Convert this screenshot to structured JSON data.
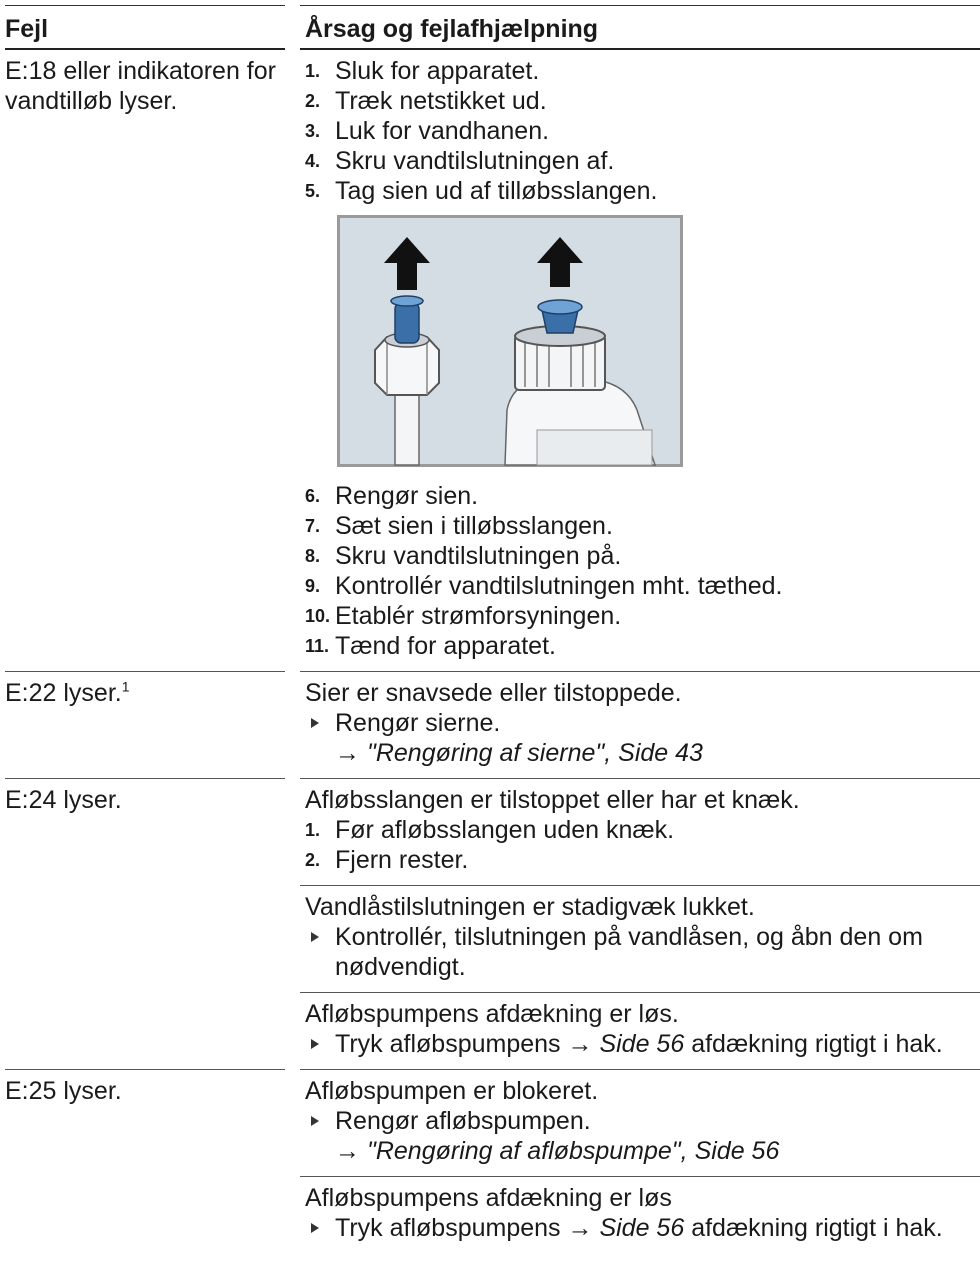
{
  "table": {
    "headers": [
      "Fejl",
      "Årsag og fejlafhjælpning"
    ],
    "rows": [
      {
        "fault": "E:18 eller indikatoren for vandtilløb lyser.",
        "groups": [
          {
            "steps": [
              {
                "num": "1.",
                "text": "Sluk for apparatet."
              },
              {
                "num": "2.",
                "text": "Træk netstikket ud."
              },
              {
                "num": "3.",
                "text": "Luk for vandhanen."
              },
              {
                "num": "4.",
                "text": "Skru vandtilslutningen af."
              },
              {
                "num": "5.",
                "text": "Tag sien ud af tilløbsslangen."
              },
              {
                "num": "6.",
                "text": "Rengør sien."
              },
              {
                "num": "7.",
                "text": "Sæt sien i tilløbsslangen."
              },
              {
                "num": "8.",
                "text": "Skru vandtilslutningen på."
              },
              {
                "num": "9.",
                "text": "Kontrollér vandtilslutningen mht. tæthed."
              },
              {
                "num": "10.",
                "text": "Etablér strømforsyningen."
              },
              {
                "num": "11.",
                "text": "Tænd for apparatet."
              }
            ]
          }
        ]
      },
      {
        "fault": "E:22 lyser.",
        "footnote": "1",
        "groups": [
          {
            "cause": "Sier er snavsede eller tilstoppede.",
            "actions": [
              {
                "text": "Rengør sierne.",
                "arrow": "→",
                "ref": "\"Rengøring af sierne\", Side 43"
              }
            ]
          }
        ]
      },
      {
        "fault": "E:24 lyser.",
        "groups": [
          {
            "cause": "Afløbsslangen er tilstoppet eller har et knæk.",
            "steps": [
              {
                "num": "1.",
                "text": "Før afløbsslangen uden knæk."
              },
              {
                "num": "2.",
                "text": "Fjern rester."
              }
            ]
          },
          {
            "cause": "Vandlåstilslutningen er stadigvæk lukket.",
            "actions": [
              {
                "text": "Kontrollér, tilslutningen på vandlåsen, og åbn den om nødvendigt."
              }
            ]
          },
          {
            "cause": "Afløbspumpens afdækning er løs.",
            "actions": [
              {
                "text": "Tryk afløbspumpens",
                "arrow": "→",
                "ref": "Side 56",
                "after": "afdækning rigtigt i hak."
              }
            ]
          }
        ]
      },
      {
        "fault": "E:25 lyser.",
        "groups": [
          {
            "cause": "Afløbspumpen er blokeret.",
            "actions": [
              {
                "text": "Rengør afløbspumpen.",
                "arrow": "→",
                "ref": "\"Rengøring af afløbspumpe\", Side 56"
              }
            ]
          },
          {
            "cause": "Afløbspumpens afdækning er løs",
            "actions": [
              {
                "text": "Tryk afløbspumpens",
                "arrow": "→",
                "ref": "Side 56",
                "after": "afdækning rigtigt i hak."
              }
            ]
          }
        ]
      }
    ]
  }
}
